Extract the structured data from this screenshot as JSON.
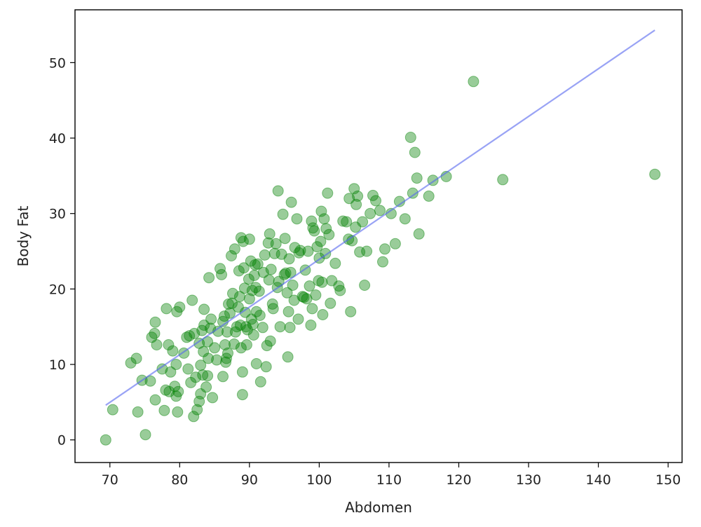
{
  "chart_data": {
    "type": "scatter",
    "title": "",
    "xlabel": "Abdomen",
    "ylabel": "Body Fat",
    "xlim": [
      65,
      152
    ],
    "ylim": [
      -3,
      57
    ],
    "xticks": [
      70,
      80,
      90,
      100,
      110,
      120,
      130,
      140,
      150
    ],
    "yticks": [
      0,
      10,
      20,
      30,
      40,
      50
    ],
    "grid": false,
    "legend": "none",
    "colors": {
      "points": "#008000",
      "fit_line": "#5566ee",
      "axes": "#000000"
    },
    "series": [
      {
        "kind": "scatter",
        "points": [
          [
            69.4,
            0.0
          ],
          [
            70.4,
            4.0
          ],
          [
            73.0,
            10.2
          ],
          [
            73.8,
            10.8
          ],
          [
            74.0,
            3.7
          ],
          [
            74.6,
            7.9
          ],
          [
            75.1,
            0.7
          ],
          [
            75.8,
            7.8
          ],
          [
            76.0,
            13.6
          ],
          [
            76.4,
            14.1
          ],
          [
            76.5,
            15.6
          ],
          [
            76.7,
            12.6
          ],
          [
            76.5,
            5.3
          ],
          [
            77.5,
            9.4
          ],
          [
            77.8,
            3.9
          ],
          [
            78.0,
            6.6
          ],
          [
            78.1,
            17.4
          ],
          [
            78.5,
            6.4
          ],
          [
            78.4,
            12.6
          ],
          [
            78.7,
            9.0
          ],
          [
            79.0,
            11.8
          ],
          [
            79.3,
            7.1
          ],
          [
            79.5,
            5.8
          ],
          [
            79.5,
            10.0
          ],
          [
            79.6,
            17.0
          ],
          [
            79.7,
            3.7
          ],
          [
            79.8,
            6.4
          ],
          [
            80.0,
            17.6
          ],
          [
            80.6,
            11.5
          ],
          [
            81.0,
            13.6
          ],
          [
            81.2,
            9.4
          ],
          [
            81.4,
            13.8
          ],
          [
            81.6,
            7.6
          ],
          [
            81.8,
            18.5
          ],
          [
            82.0,
            3.1
          ],
          [
            82.1,
            14.1
          ],
          [
            82.3,
            8.3
          ],
          [
            82.5,
            4.0
          ],
          [
            82.8,
            12.8
          ],
          [
            82.8,
            5.1
          ],
          [
            83.0,
            9.9
          ],
          [
            83.0,
            6.1
          ],
          [
            83.2,
            14.5
          ],
          [
            83.3,
            8.6
          ],
          [
            83.4,
            11.7
          ],
          [
            83.5,
            15.2
          ],
          [
            83.5,
            17.3
          ],
          [
            83.8,
            7.0
          ],
          [
            84.0,
            13.0
          ],
          [
            84.0,
            8.5
          ],
          [
            84.1,
            10.8
          ],
          [
            84.2,
            21.5
          ],
          [
            84.4,
            14.8
          ],
          [
            84.5,
            16.0
          ],
          [
            84.7,
            5.6
          ],
          [
            85.0,
            12.2
          ],
          [
            85.3,
            10.6
          ],
          [
            85.5,
            14.4
          ],
          [
            85.8,
            22.7
          ],
          [
            86.0,
            21.9
          ],
          [
            86.2,
            15.7
          ],
          [
            86.2,
            8.4
          ],
          [
            86.4,
            16.4
          ],
          [
            86.5,
            12.6
          ],
          [
            86.6,
            10.3
          ],
          [
            86.7,
            10.8
          ],
          [
            86.8,
            14.3
          ],
          [
            86.9,
            11.5
          ],
          [
            87.0,
            18.0
          ],
          [
            87.2,
            16.8
          ],
          [
            87.4,
            24.4
          ],
          [
            87.5,
            18.1
          ],
          [
            87.6,
            19.4
          ],
          [
            87.8,
            12.7
          ],
          [
            87.9,
            25.3
          ],
          [
            88.0,
            14.3
          ],
          [
            88.2,
            15.0
          ],
          [
            88.4,
            17.6
          ],
          [
            88.5,
            22.4
          ],
          [
            88.6,
            19.0
          ],
          [
            88.7,
            15.2
          ],
          [
            88.8,
            26.8
          ],
          [
            88.8,
            12.2
          ],
          [
            89.0,
            9.0
          ],
          [
            89.0,
            6.0
          ],
          [
            89.1,
            26.3
          ],
          [
            89.2,
            22.8
          ],
          [
            89.3,
            20.1
          ],
          [
            89.4,
            16.9
          ],
          [
            89.5,
            15.0
          ],
          [
            89.6,
            12.6
          ],
          [
            89.7,
            14.6
          ],
          [
            89.9,
            21.3
          ],
          [
            90.0,
            26.6
          ],
          [
            90.0,
            18.7
          ],
          [
            90.2,
            23.7
          ],
          [
            90.3,
            16.0
          ],
          [
            90.4,
            19.8
          ],
          [
            90.5,
            15.3
          ],
          [
            90.6,
            13.9
          ],
          [
            90.7,
            21.8
          ],
          [
            90.8,
            23.2
          ],
          [
            90.9,
            20.2
          ],
          [
            91.0,
            17.0
          ],
          [
            91.0,
            10.1
          ],
          [
            91.2,
            23.3
          ],
          [
            91.4,
            19.7
          ],
          [
            91.5,
            16.5
          ],
          [
            91.6,
            7.7
          ],
          [
            91.9,
            14.9
          ],
          [
            92.0,
            22.2
          ],
          [
            92.2,
            24.5
          ],
          [
            92.4,
            9.7
          ],
          [
            92.5,
            12.5
          ],
          [
            92.7,
            26.1
          ],
          [
            92.8,
            21.2
          ],
          [
            92.9,
            27.3
          ],
          [
            93.0,
            13.1
          ],
          [
            93.1,
            22.6
          ],
          [
            93.3,
            18.0
          ],
          [
            93.4,
            17.4
          ],
          [
            93.6,
            24.7
          ],
          [
            93.8,
            26.0
          ],
          [
            94.0,
            20.2
          ],
          [
            94.1,
            33.0
          ],
          [
            94.2,
            21.0
          ],
          [
            94.4,
            15.0
          ],
          [
            94.6,
            24.6
          ],
          [
            94.8,
            29.9
          ],
          [
            95.0,
            21.9
          ],
          [
            95.1,
            26.7
          ],
          [
            95.2,
            22.1
          ],
          [
            95.4,
            19.5
          ],
          [
            95.5,
            11.0
          ],
          [
            95.6,
            17.0
          ],
          [
            95.7,
            24.0
          ],
          [
            95.8,
            14.9
          ],
          [
            95.9,
            22.2
          ],
          [
            96.0,
            31.5
          ],
          [
            96.2,
            20.5
          ],
          [
            96.4,
            18.5
          ],
          [
            96.5,
            25.5
          ],
          [
            96.8,
            29.3
          ],
          [
            97.0,
            16.0
          ],
          [
            97.1,
            24.8
          ],
          [
            97.3,
            25.1
          ],
          [
            97.6,
            19.0
          ],
          [
            97.8,
            18.9
          ],
          [
            98.0,
            22.5
          ],
          [
            98.2,
            18.7
          ],
          [
            98.4,
            25.0
          ],
          [
            98.6,
            20.4
          ],
          [
            98.8,
            15.2
          ],
          [
            98.9,
            29.0
          ],
          [
            99.0,
            17.4
          ],
          [
            99.1,
            28.1
          ],
          [
            99.3,
            27.7
          ],
          [
            99.5,
            19.2
          ],
          [
            99.7,
            25.6
          ],
          [
            99.9,
            21.1
          ],
          [
            100.0,
            24.1
          ],
          [
            100.2,
            26.3
          ],
          [
            100.3,
            30.3
          ],
          [
            100.4,
            20.9
          ],
          [
            100.5,
            16.6
          ],
          [
            100.7,
            29.3
          ],
          [
            100.9,
            24.7
          ],
          [
            101.0,
            28.0
          ],
          [
            101.2,
            32.7
          ],
          [
            101.4,
            27.2
          ],
          [
            101.6,
            18.1
          ],
          [
            101.8,
            21.1
          ],
          [
            102.3,
            23.4
          ],
          [
            102.8,
            20.4
          ],
          [
            103.0,
            19.8
          ],
          [
            103.4,
            29.0
          ],
          [
            103.9,
            28.9
          ],
          [
            104.2,
            26.6
          ],
          [
            104.3,
            32.0
          ],
          [
            104.5,
            17.0
          ],
          [
            104.7,
            26.4
          ],
          [
            105.0,
            33.3
          ],
          [
            105.2,
            28.2
          ],
          [
            105.3,
            31.2
          ],
          [
            105.5,
            32.3
          ],
          [
            105.8,
            24.9
          ],
          [
            106.2,
            28.9
          ],
          [
            106.5,
            20.5
          ],
          [
            106.8,
            25.0
          ],
          [
            107.3,
            30.0
          ],
          [
            107.7,
            32.4
          ],
          [
            108.1,
            31.7
          ],
          [
            108.7,
            30.4
          ],
          [
            109.1,
            23.6
          ],
          [
            109.4,
            25.3
          ],
          [
            110.3,
            30.0
          ],
          [
            110.9,
            26.0
          ],
          [
            111.5,
            31.6
          ],
          [
            112.3,
            29.3
          ],
          [
            113.1,
            40.1
          ],
          [
            113.4,
            32.7
          ],
          [
            113.7,
            38.1
          ],
          [
            114.0,
            34.7
          ],
          [
            114.3,
            27.3
          ],
          [
            115.7,
            32.3
          ],
          [
            116.3,
            34.4
          ],
          [
            118.2,
            34.9
          ],
          [
            122.1,
            47.5
          ],
          [
            126.3,
            34.5
          ],
          [
            148.1,
            35.2
          ]
        ]
      },
      {
        "kind": "line",
        "x": [
          69.4,
          148.1
        ],
        "y": [
          4.6,
          54.3
        ]
      }
    ]
  }
}
